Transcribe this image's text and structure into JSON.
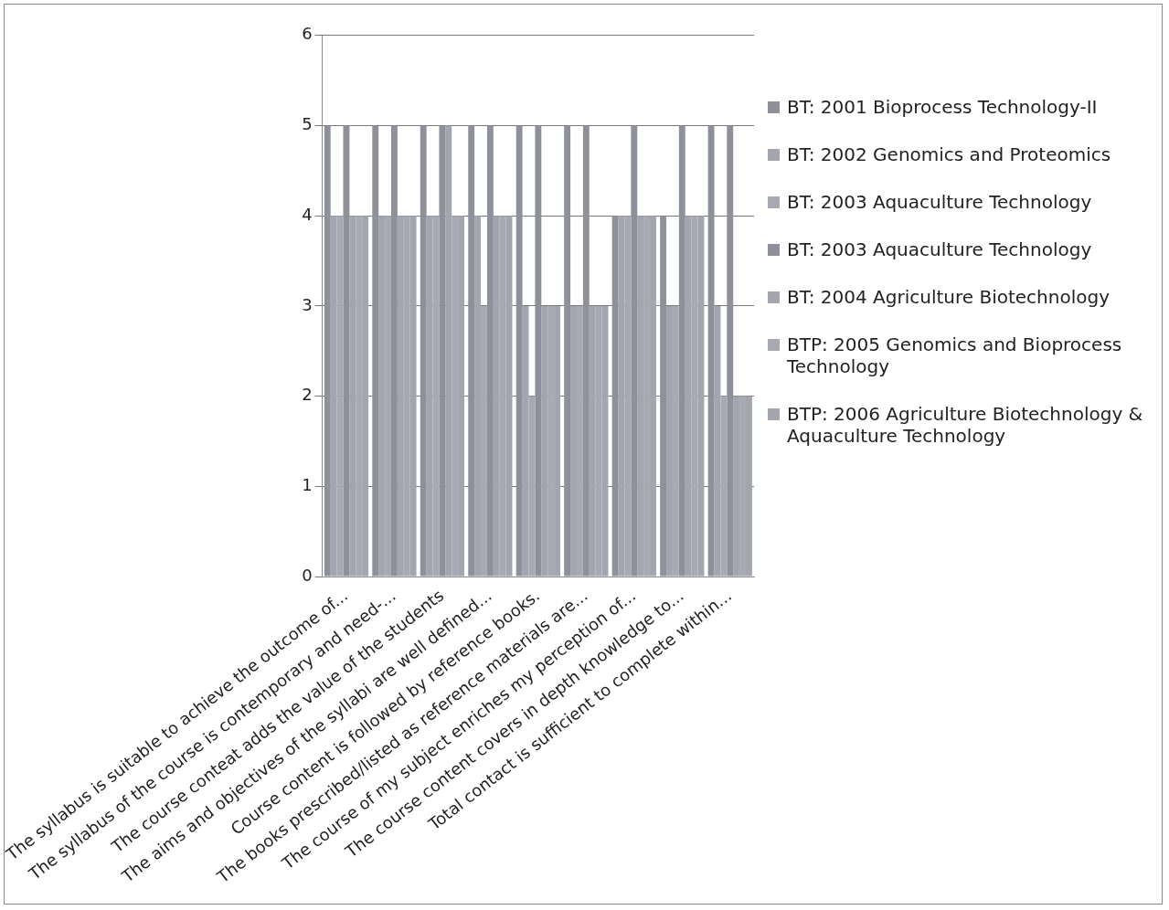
{
  "chart_data": {
    "type": "bar",
    "categories": [
      "The syllabus is suitable to achieve the outcome of...",
      "The syllabus of the course is contemporary and need-...",
      "The course conteat adds the value of the students",
      "The aims and objectives of the syllabi are well defined...",
      "Course content is followed by reference books.",
      "The books prescribed/listed as reference materials are...",
      "The course of my subject enriches my perception of...",
      "The course content covers in depth knowledge to...",
      "Total contact is sufficient to complete within..."
    ],
    "series": [
      {
        "name": "BT: 2001 Bioprocess Technology-II",
        "color": "#8e9199",
        "values": [
          5,
          5,
          5,
          5,
          5,
          5,
          4,
          4,
          5
        ]
      },
      {
        "name": "BT: 2002 Genomics and Proteomics",
        "color": "#a3a6ae",
        "values": [
          4,
          4,
          4,
          4,
          3,
          3,
          4,
          3,
          3
        ]
      },
      {
        "name": "BT: 2003 Aquaculture Technology",
        "color": "#a7aab2",
        "values": [
          4,
          4,
          4,
          3,
          2,
          3,
          4,
          3,
          2
        ]
      },
      {
        "name": "BT: 2003 Aquaculture Technology",
        "color": "#8e9199",
        "values": [
          5,
          5,
          5,
          5,
          5,
          5,
          5,
          5,
          5
        ]
      },
      {
        "name": "BT: 2004 Agriculture Biotechnology",
        "color": "#a3a6ae",
        "values": [
          4,
          4,
          5,
          4,
          3,
          3,
          4,
          4,
          2
        ]
      },
      {
        "name": "BTP: 2005 Genomics and Bioprocess Technology",
        "color": "#a7aab2",
        "values": [
          4,
          4,
          4,
          4,
          3,
          3,
          4,
          4,
          2
        ]
      },
      {
        "name": "BTP: 2006 Agriculture Biotechnology & Aquaculture Technology",
        "color": "#a3a6ae",
        "values": [
          4,
          4,
          4,
          4,
          3,
          3,
          4,
          4,
          2
        ]
      }
    ],
    "ylim": [
      0,
      6
    ],
    "yticks": [
      0,
      1,
      2,
      3,
      4,
      5,
      6
    ],
    "grid": "y",
    "legend": "right"
  }
}
